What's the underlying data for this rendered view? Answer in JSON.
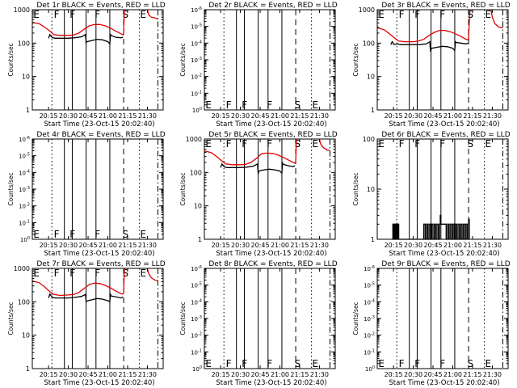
{
  "figure": {
    "xlabel": "Start Time (23-Oct-15 20:02:40)",
    "ylabel": "Counts/sec",
    "x_ticks": [
      "20:15",
      "20:30",
      "20:45",
      "21:00",
      "21:15",
      "21:30"
    ],
    "x_tick_minutes": [
      15,
      30,
      45,
      60,
      75,
      90
    ],
    "x_range_minutes": [
      2.67,
      102
    ],
    "event_lines": [
      {
        "minute": 17.5,
        "style": "dotted",
        "label": ""
      },
      {
        "minute": 27,
        "style": "solid",
        "label": ""
      },
      {
        "minute": 33,
        "style": "solid",
        "label": ""
      },
      {
        "minute": 43.5,
        "style": "solid",
        "label": ""
      },
      {
        "minute": 51,
        "style": "solid",
        "label": ""
      },
      {
        "minute": 61.5,
        "style": "solid",
        "label": ""
      },
      {
        "minute": 72,
        "style": "dashed",
        "label": ""
      },
      {
        "minute": 84,
        "style": "dotted",
        "label": ""
      },
      {
        "minute": 98,
        "style": "dashdot",
        "label": ""
      }
    ],
    "region_letters": [
      {
        "minute": 3.5,
        "text": "E"
      },
      {
        "minute": 19,
        "text": "F"
      },
      {
        "minute": 31,
        "text": "F"
      },
      {
        "minute": 50,
        "text": "F"
      },
      {
        "minute": 71,
        "text": "S"
      },
      {
        "minute": 84.5,
        "text": "E"
      }
    ],
    "colors": {
      "events": "#000000",
      "lld": "#e00000"
    }
  },
  "chart_data": [
    {
      "type": "line",
      "title": "Det 1r BLACK = Events, RED = LLD",
      "scale": "log",
      "ylim": [
        1,
        1000
      ],
      "y_ticks": [
        "1",
        "10",
        "100",
        "1000"
      ],
      "series": [
        {
          "name": "LLD",
          "x": [
            2.67,
            8,
            12,
            16,
            19,
            24,
            30,
            34,
            38,
            42,
            46,
            50,
            54,
            58,
            62,
            66,
            70,
            71.5,
            72,
            72.5
          ],
          "values": [
            420,
            380,
            300,
            230,
            180,
            170,
            170,
            175,
            200,
            260,
            330,
            360,
            360,
            330,
            280,
            230,
            190,
            175,
            200,
            1000
          ]
        },
        {
          "name": "LLD-tail",
          "x": [
            90,
            91,
            93,
            96,
            98
          ],
          "values": [
            1000,
            700,
            600,
            560,
            520
          ]
        },
        {
          "name": "Events",
          "x": [
            15,
            16,
            17,
            18,
            20,
            25,
            30,
            35,
            40,
            43,
            43.5,
            44,
            48,
            52,
            56,
            60,
            61.5,
            62,
            62.5,
            66,
            70,
            71.5
          ],
          "values": [
            140,
            180,
            160,
            145,
            140,
            140,
            140,
            145,
            155,
            180,
            100,
            110,
            120,
            130,
            125,
            110,
            95,
            180,
            170,
            150,
            145,
            150
          ]
        }
      ]
    },
    {
      "type": "line",
      "title": "Det 2r BLACK = Events, RED = LLD",
      "scale": "log",
      "ylim": [
        1,
        1000000
      ],
      "y_ticks": [
        "10^0",
        "10^-1",
        "10^-2",
        "10^-3",
        "10^-4",
        "10^-5",
        "10^-6"
      ],
      "series": []
    },
    {
      "type": "line",
      "title": "Det 3r BLACK = Events, RED = LLD",
      "scale": "log",
      "ylim": [
        1,
        1000
      ],
      "y_ticks": [
        "1",
        "10",
        "100",
        "1000"
      ],
      "series": [
        {
          "name": "LLD",
          "x": [
            2.67,
            8,
            12,
            16,
            19,
            24,
            30,
            34,
            38,
            42,
            46,
            50,
            54,
            58,
            62,
            66,
            70,
            71.5,
            72,
            72.5,
            73
          ],
          "values": [
            290,
            250,
            190,
            140,
            115,
            110,
            110,
            115,
            130,
            170,
            210,
            240,
            240,
            220,
            190,
            160,
            130,
            125,
            140,
            400,
            1000
          ]
        },
        {
          "name": "LLD-tail",
          "x": [
            89,
            90,
            92,
            95,
            98
          ],
          "values": [
            1000,
            600,
            380,
            300,
            290
          ]
        },
        {
          "name": "Events",
          "x": [
            13,
            14,
            15.5,
            18,
            20,
            25,
            30,
            35,
            40,
            42.5,
            43,
            43.5,
            44,
            48,
            52,
            56,
            60,
            61.5,
            62,
            62.5,
            66,
            70,
            71.5
          ],
          "values": [
            90,
            110,
            90,
            95,
            90,
            90,
            90,
            90,
            95,
            110,
            60,
            65,
            70,
            75,
            80,
            78,
            70,
            60,
            110,
            105,
            100,
            95,
            100
          ]
        }
      ]
    },
    {
      "type": "line",
      "title": "Det 4r BLACK = Events, RED = LLD",
      "scale": "log",
      "ylim": [
        1,
        1000000
      ],
      "y_ticks": [
        "10^0",
        "10^-1",
        "10^-2",
        "10^-3",
        "10^-4",
        "10^-5",
        "10^-6"
      ],
      "series": []
    },
    {
      "type": "line",
      "title": "Det 5r BLACK = Events, RED = LLD",
      "scale": "log",
      "ylim": [
        1,
        1000
      ],
      "y_ticks": [
        "1",
        "10",
        "100",
        "1000"
      ],
      "series": [
        {
          "name": "LLD",
          "x": [
            2.67,
            8,
            12,
            16,
            19,
            24,
            30,
            34,
            38,
            42,
            46,
            50,
            54,
            58,
            62,
            66,
            70,
            71.5,
            72,
            72.5
          ],
          "values": [
            440,
            390,
            300,
            220,
            180,
            170,
            170,
            175,
            200,
            260,
            360,
            380,
            370,
            340,
            290,
            240,
            200,
            190,
            210,
            1000
          ]
        },
        {
          "name": "LLD-tail",
          "x": [
            90,
            91,
            93,
            96,
            98
          ],
          "values": [
            1000,
            700,
            550,
            470,
            450
          ]
        },
        {
          "name": "Events",
          "x": [
            15,
            16,
            17,
            18,
            20,
            25,
            30,
            35,
            40,
            43,
            43.5,
            44,
            48,
            52,
            56,
            60,
            61.5,
            62,
            62.5,
            66,
            70,
            71.5
          ],
          "values": [
            140,
            180,
            160,
            145,
            140,
            140,
            140,
            145,
            155,
            180,
            90,
            110,
            120,
            125,
            120,
            110,
            95,
            190,
            175,
            160,
            150,
            160
          ]
        }
      ]
    },
    {
      "type": "line",
      "title": "Det 6r BLACK = Events, RED = LLD",
      "scale": "log",
      "ylim": [
        1,
        100
      ],
      "y_ticks": [
        "1",
        "10",
        "100"
      ],
      "series": [
        {
          "name": "Events",
          "x": [
            14,
            14.5,
            15,
            15.5,
            16,
            16.5,
            17,
            17.5,
            18,
            18.5,
            19,
            37,
            38,
            39,
            40,
            41,
            42,
            43,
            44,
            45,
            46,
            47,
            48,
            49,
            50,
            50.5,
            51,
            52,
            53,
            54,
            55,
            56,
            57,
            58,
            59,
            60,
            61,
            62,
            63,
            64,
            65,
            66,
            67,
            68,
            69,
            70,
            71,
            72,
            72.5
          ],
          "values": [
            1,
            2,
            1,
            2,
            1,
            2,
            1,
            2,
            1,
            2,
            1,
            1,
            2,
            1,
            2,
            1,
            2,
            1,
            2,
            1,
            2,
            1,
            2,
            1,
            2,
            3,
            2,
            2,
            2,
            2,
            1,
            2,
            1,
            2,
            1,
            2,
            1,
            2,
            1,
            2,
            1,
            2,
            1,
            2,
            1,
            2,
            1,
            2.5,
            1
          ]
        }
      ]
    },
    {
      "type": "line",
      "title": "Det 7r BLACK = Events, RED = LLD",
      "scale": "log",
      "ylim": [
        1,
        1000
      ],
      "y_ticks": [
        "1",
        "10",
        "100",
        "1000"
      ],
      "series": [
        {
          "name": "LLD",
          "x": [
            2.67,
            8,
            12,
            16,
            19,
            24,
            30,
            34,
            38,
            42,
            46,
            50,
            54,
            58,
            62,
            66,
            70,
            71.5,
            72,
            72.5
          ],
          "values": [
            420,
            370,
            280,
            200,
            165,
            155,
            160,
            165,
            190,
            250,
            330,
            360,
            350,
            310,
            260,
            210,
            175,
            170,
            190,
            1000
          ]
        },
        {
          "name": "LLD-tail",
          "x": [
            90,
            91,
            93,
            96,
            98
          ],
          "values": [
            1000,
            700,
            520,
            440,
            420
          ]
        },
        {
          "name": "Events",
          "x": [
            15,
            16,
            17,
            18,
            20,
            25,
            30,
            35,
            40,
            43,
            43.5,
            44,
            48,
            52,
            56,
            60,
            61.5,
            62,
            62.5,
            66,
            70,
            71.5
          ],
          "values": [
            130,
            170,
            150,
            135,
            130,
            130,
            130,
            135,
            145,
            165,
            100,
            105,
            115,
            125,
            120,
            108,
            100,
            165,
            150,
            140,
            130,
            140
          ]
        }
      ]
    },
    {
      "type": "line",
      "title": "Det 8r BLACK = Events, RED = LLD",
      "scale": "log",
      "ylim": [
        1,
        1000000
      ],
      "y_ticks": [
        "10^0",
        "10^-1",
        "10^-2",
        "10^-3",
        "10^-4",
        "10^-5",
        "10^-6"
      ],
      "series": []
    },
    {
      "type": "line",
      "title": "Det 9r BLACK = Events, RED = LLD",
      "scale": "log",
      "ylim": [
        1,
        1000000
      ],
      "y_ticks": [
        "10^0",
        "10^-1",
        "10^-2",
        "10^-3",
        "10^-4",
        "10^-5",
        "10^-6"
      ],
      "series": []
    }
  ]
}
